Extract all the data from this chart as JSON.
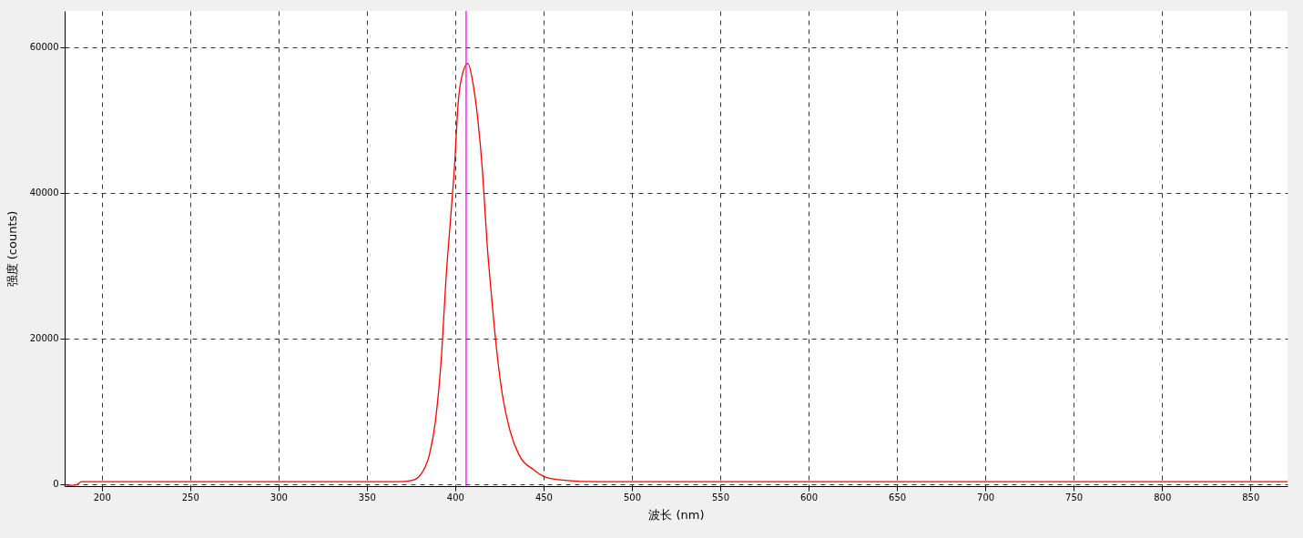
{
  "chart_data": {
    "type": "line",
    "xlabel": "波长 (nm)",
    "ylabel": "强度 (counts)",
    "x": [
      180,
      183.5,
      186,
      188.5,
      200,
      250,
      300,
      350,
      358.8,
      368,
      375.9,
      381.1,
      385.4,
      388.8,
      392.3,
      394.8,
      397.4,
      399.6,
      401.7,
      404.3,
      407.2,
      409.9,
      412.9,
      415.5,
      418.0,
      420.6,
      423.2,
      426.6,
      430.9,
      436.1,
      444.7,
      451.5,
      461.9,
      480,
      550,
      650,
      750,
      850,
      871
    ],
    "series": [
      {
        "color": "#ff0000",
        "values": [
          -200,
          -200,
          -100,
          300,
          300,
          300,
          300,
          300,
          300,
          300,
          500,
          1500,
          4000,
          8600,
          17800,
          28200,
          36500,
          43600,
          52400,
          56500,
          57800,
          55300,
          49900,
          42800,
          33200,
          25700,
          19000,
          12400,
          7400,
          4000,
          1900,
          900,
          500,
          300,
          300,
          300,
          300,
          300,
          300
        ]
      }
    ],
    "xlim": [
      179,
      871
    ],
    "ylim": [
      -300,
      65000
    ],
    "xticks": [
      200,
      250,
      300,
      350,
      400,
      450,
      500,
      550,
      600,
      650,
      700,
      750,
      800,
      850
    ],
    "yticks": [
      0,
      20000,
      40000,
      60000
    ],
    "grid": true,
    "line_style": "solid",
    "ref_lines": [
      {
        "axis": "x",
        "value": 406.2,
        "color": "#ff00ff"
      }
    ]
  }
}
